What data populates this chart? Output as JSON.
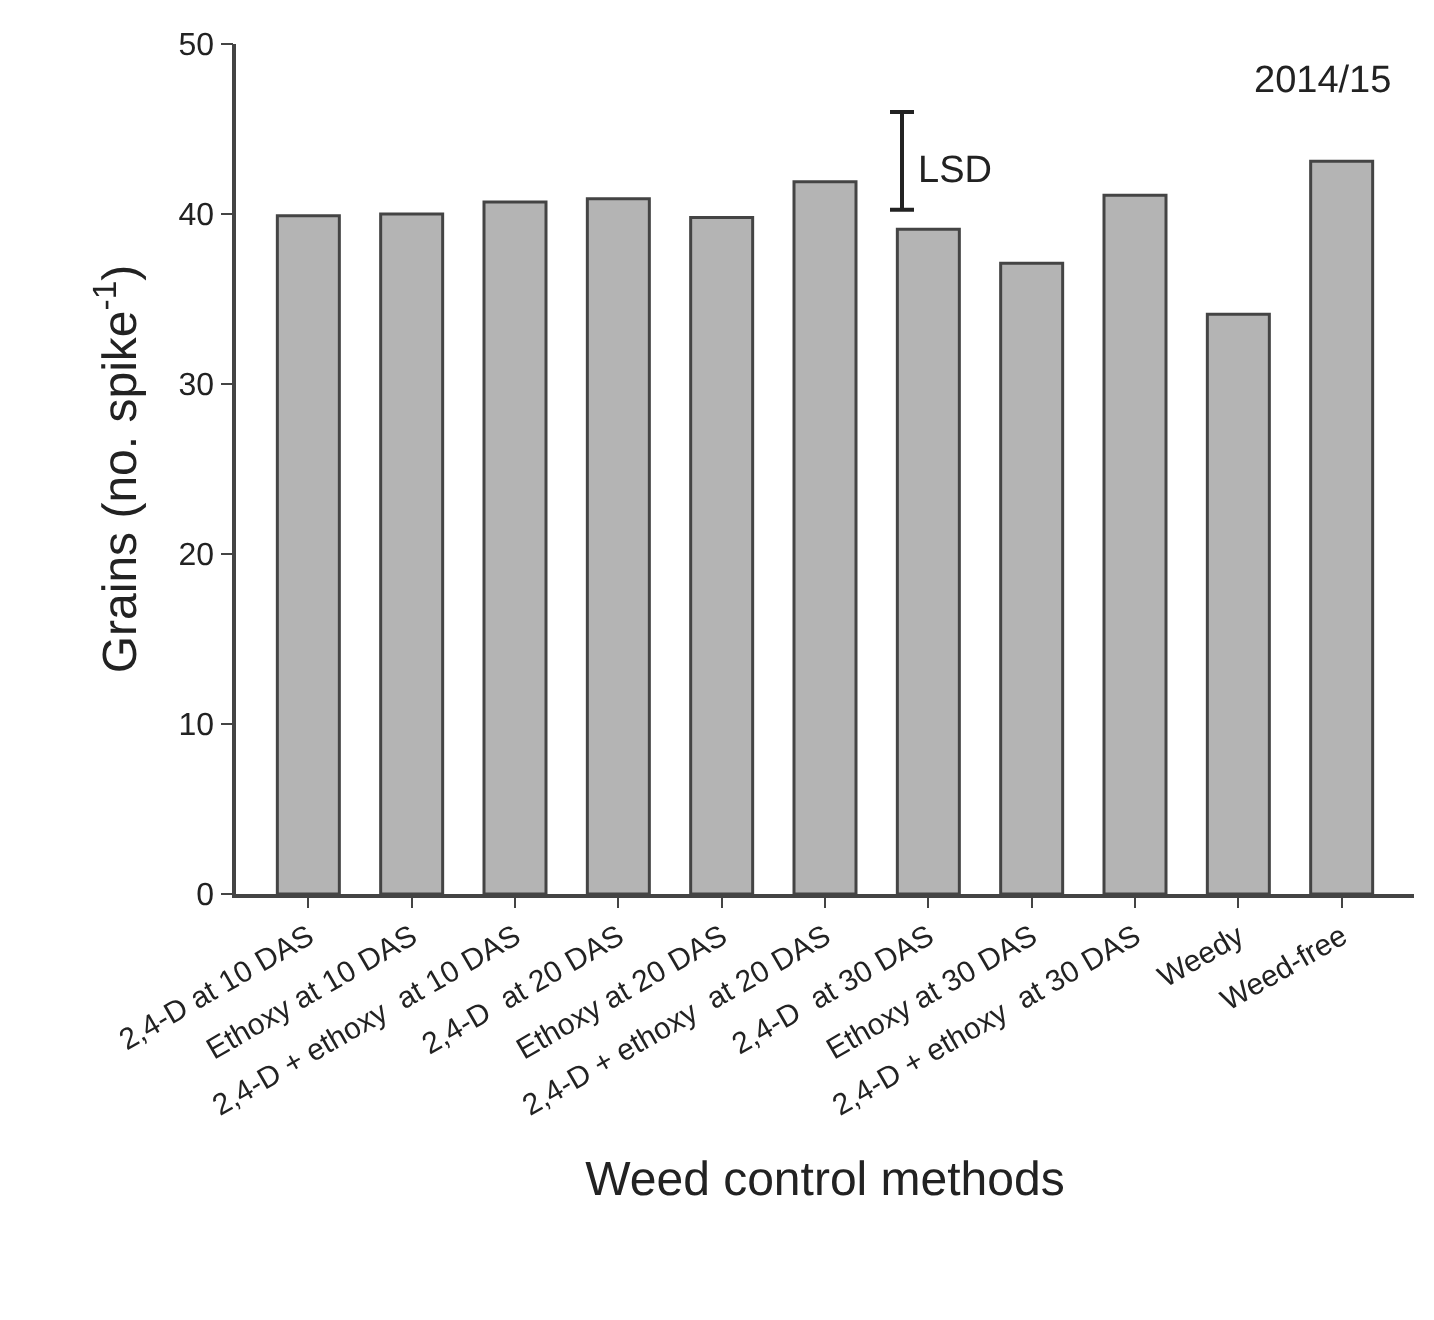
{
  "chart_data": {
    "type": "bar",
    "xlabel": "Weed control methods",
    "ylabel": "Grains (no. spike$^{-1}$)",
    "categories": [
      "2,4-D at 10 DAS",
      "Ethoxy at 10 DAS",
      "2,4-D + ethoxy  at 10 DAS",
      "2,4-D  at 20 DAS",
      "Ethoxy at 20 DAS",
      "2,4-D + ethoxy  at 20 DAS",
      "2,4-D  at 30 DAS",
      "Ethoxy at 30 DAS",
      "2,4-D + ethoxy  at 30 DAS",
      "Weedy",
      "Weed-free"
    ],
    "values": [
      39.9,
      40.0,
      40.7,
      40.9,
      39.8,
      41.9,
      39.1,
      37.1,
      41.1,
      34.1,
      43.1
    ],
    "color": "#b4b4b4",
    "ylim": [
      0,
      50
    ],
    "yticks": [
      0,
      10,
      20,
      30,
      40,
      50
    ],
    "grid": false,
    "annotations": [
      "LSD",
      "2014/15"
    ]
  }
}
